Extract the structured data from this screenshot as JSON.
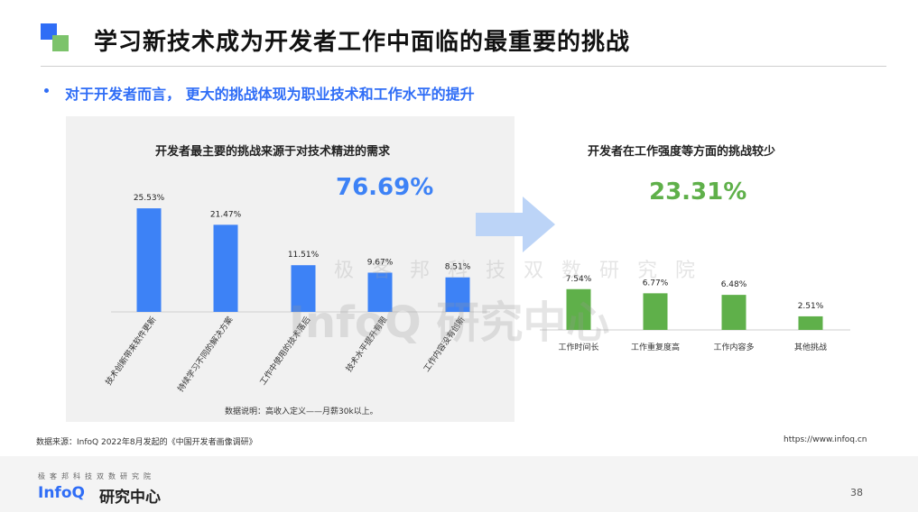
{
  "header": {
    "title": "学习新技术成为开发者工作中面临的最重要的挑战",
    "subtitle": "对于开发者而言， 更大的挑战体现为职业技术和工作水平的提升"
  },
  "chart_data": [
    {
      "type": "bar",
      "title": "开发者最主要的挑战来源于对技术精进的需求",
      "highlight": "76.69%",
      "categories": [
        "技术创新带来软件更新",
        "持续学习不同的解决方案",
        "工作中使用的技术落后",
        "技术水平提升有限",
        "工作内容没有创新"
      ],
      "values": [
        25.53,
        21.47,
        11.51,
        9.67,
        8.51
      ],
      "labels": [
        "25.53%",
        "21.47%",
        "11.51%",
        "9.67%",
        "8.51%"
      ],
      "color": "#3d82f6",
      "note": "数据说明：高收入定义——月薪30k以上。"
    },
    {
      "type": "bar",
      "title": "开发者在工作强度等方面的挑战较少",
      "highlight": "23.31%",
      "categories": [
        "工作时间长",
        "工作重复度高",
        "工作内容多",
        "其他挑战"
      ],
      "values": [
        7.54,
        6.77,
        6.48,
        2.51
      ],
      "labels": [
        "7.54%",
        "6.77%",
        "6.48%",
        "2.51%"
      ],
      "color": "#5fb04a"
    }
  ],
  "footer": {
    "source": "数据来源：InfoQ 2022年8月发起的《中国开发者画像调研》",
    "url": "https://www.infoq.cn",
    "brand_small": "极客邦科技双数研究院",
    "brand": "InfoQ",
    "brand_cn": "研究中心",
    "page": "38"
  },
  "watermark": {
    "line1": "极客邦科技双数研究院",
    "line2": "InfoQ 研究中心"
  },
  "colors": {
    "accent_blue": "#2f6df6",
    "accent_green": "#5fb04a"
  }
}
